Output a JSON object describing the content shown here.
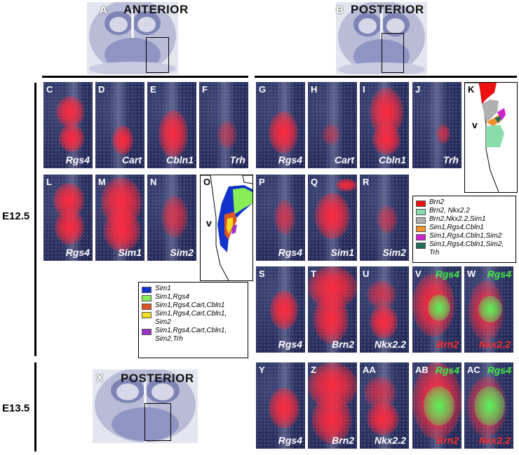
{
  "top": {
    "A": {
      "letter": "A",
      "title": "ANTERIOR"
    },
    "B": {
      "letter": "B",
      "title": "POSTERIOR"
    },
    "X": {
      "letter": "X",
      "title": "POSTERIOR"
    }
  },
  "stages": {
    "e125": "E12.5",
    "e135": "E13.5"
  },
  "panels": {
    "C": {
      "letter": "C",
      "gene": "Rgs4"
    },
    "D": {
      "letter": "D",
      "gene": "Cart"
    },
    "E": {
      "letter": "E",
      "gene": "Cbln1"
    },
    "F": {
      "letter": "F",
      "gene": "Trh"
    },
    "G": {
      "letter": "G",
      "gene": "Rgs4"
    },
    "H": {
      "letter": "H",
      "gene": "Cart"
    },
    "I": {
      "letter": "I",
      "gene": "Cbln1"
    },
    "J": {
      "letter": "J",
      "gene": "Trh"
    },
    "L": {
      "letter": "L",
      "gene": "Rgs4"
    },
    "M": {
      "letter": "M",
      "gene": "Sim1"
    },
    "N": {
      "letter": "N",
      "gene": "Sim2"
    },
    "P": {
      "letter": "P",
      "gene": "Rgs4"
    },
    "Q": {
      "letter": "Q",
      "gene": "Sim1"
    },
    "R": {
      "letter": "R",
      "gene": "Sim2"
    },
    "S": {
      "letter": "S",
      "gene": "Rgs4"
    },
    "T": {
      "letter": "T",
      "gene": "Brn2"
    },
    "U": {
      "letter": "U",
      "gene": "Nkx2.2"
    },
    "V": {
      "letter": "V",
      "gene": "Brn2",
      "top": "Rgs4"
    },
    "W": {
      "letter": "W",
      "gene": "Nkx2.2",
      "top": "Rgs4"
    },
    "Y": {
      "letter": "Y",
      "gene": "Rgs4"
    },
    "Z": {
      "letter": "Z",
      "gene": "Brn2"
    },
    "AA": {
      "letter": "AA",
      "gene": "Nkx2.2"
    },
    "AB": {
      "letter": "AB",
      "gene": "Brn2",
      "top": "Rgs4"
    },
    "AC": {
      "letter": "AC",
      "gene": "Nkx2.2",
      "top": "Rgs4"
    }
  },
  "schematics": {
    "K": {
      "letter": "K",
      "ventricle": "v"
    },
    "O": {
      "letter": "O",
      "ventricle": "v"
    }
  },
  "legend_posterior": [
    {
      "color": "#ee1111",
      "text": "Brn2"
    },
    {
      "color": "#88ddaa",
      "text": "Brn2, Nkx2.2"
    },
    {
      "color": "#b0b0b0",
      "text": "Brn2,Nkx2.2,Sim1"
    },
    {
      "color": "#f0922b",
      "text": "Sim1,Rgs4,Cbln1"
    },
    {
      "color": "#cc22cc",
      "text": "Sim1,Rgs4,Cbln1,Sim2"
    },
    {
      "color": "#1f6b55",
      "text": "Sim1,Rgs4,Cbln1,Sim2,\nTrh"
    }
  ],
  "legend_anterior": [
    {
      "color": "#1133cc",
      "text": "Sim1"
    },
    {
      "color": "#88ee55",
      "text": "Sim1,Rgs4"
    },
    {
      "color": "#dd5522",
      "text": "Sim1,Rgs4,Cart,Cbln1"
    },
    {
      "color": "#f2dd22",
      "text": "Sim1,Rgs4,Cart,Cbln1,\nSim2"
    },
    {
      "color": "#9933cc",
      "text": "Sim1,Rgs4,Cart,Cbln1,\nSim2,Trh"
    }
  ]
}
